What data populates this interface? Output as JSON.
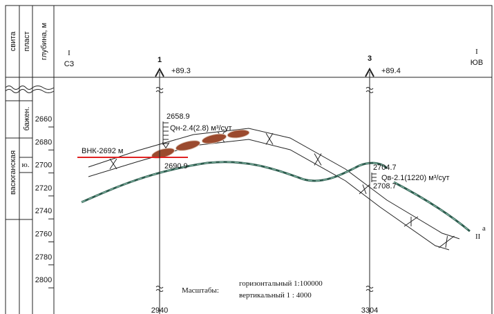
{
  "section": {
    "left": "I",
    "left_dir": "СЗ",
    "right": "I",
    "right_dir": "ЮВ"
  },
  "columns": [
    "свита",
    "пласт",
    "глубина, м"
  ],
  "stratigraphy": {
    "suite": "васюганская",
    "upper_suite": "бажен.",
    "layer": "ю."
  },
  "depth_scale": [
    2660,
    2680,
    2700,
    2720,
    2740,
    2760,
    2780,
    2800
  ],
  "wells": [
    {
      "name": "1",
      "altitude": "+89.3",
      "bottom": 2940,
      "top_depth": 2658.9,
      "rate": "Qн-2.4(2.8) м³/сут",
      "base_depth": 2690.9
    },
    {
      "name": "3",
      "altitude": "+89.4",
      "bottom": 3304,
      "top_depth": 2704.7,
      "rate": "Qв-2.1(1220) м³/сут",
      "base_depth": 2708.7
    }
  ],
  "contact_label": "ВНК-2692 м",
  "layer_label": "II",
  "layer_index": "a",
  "scale": {
    "title": "Масштабы:",
    "horizontal": "горизонтальный 1:100000",
    "vertical": "вертикальный 1 : 4000"
  }
}
